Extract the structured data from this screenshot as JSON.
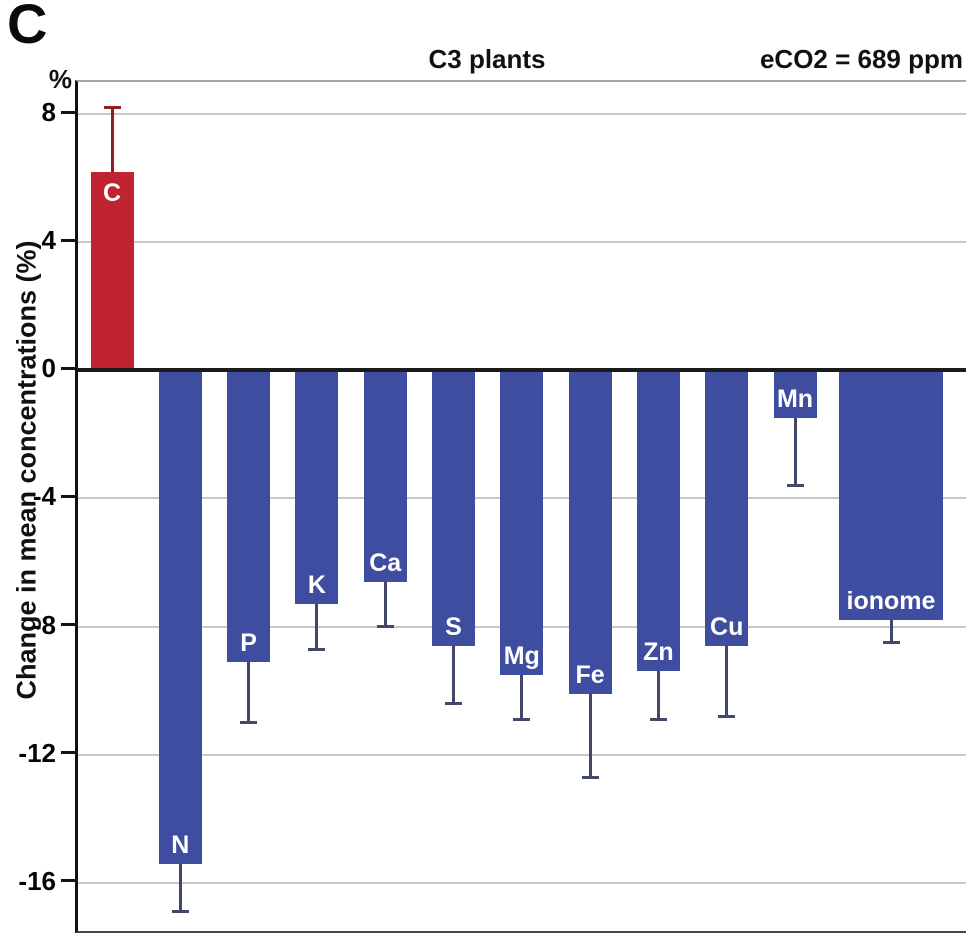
{
  "panel_label": "C",
  "chart_data": {
    "type": "bar",
    "title": "C3 plants",
    "annotation": "eCO2 = 689 ppm",
    "ylabel": "Change in mean concentrations (%)",
    "unit": "%",
    "xlabel": "",
    "ylim": [
      -17.5,
      9
    ],
    "yticks": [
      8,
      4,
      0,
      -4,
      -8,
      -12,
      -16
    ],
    "grid": true,
    "legend": false,
    "categories": [
      "C",
      "N",
      "P",
      "K",
      "Ca",
      "S",
      "Mg",
      "Fe",
      "Zn",
      "Cu",
      "Mn",
      "ionome"
    ],
    "values": [
      6.2,
      -15.4,
      -9.1,
      -7.3,
      -6.6,
      -8.6,
      -9.5,
      -10.1,
      -9.4,
      -8.6,
      -1.5,
      -7.8
    ],
    "errors": [
      2.0,
      1.5,
      1.9,
      1.4,
      1.4,
      1.8,
      1.4,
      2.6,
      1.5,
      2.2,
      2.1,
      0.7
    ],
    "error_direction": "outward",
    "colors": {
      "positive": "#bf2430",
      "positive_error": "#8e1f28",
      "negative": "#3e4da0",
      "negative_error": "#414869"
    },
    "bar_label_color": "#ffffff",
    "gridline_color": "#c9c9c9",
    "zero_line_color": "#1b1b1b"
  }
}
